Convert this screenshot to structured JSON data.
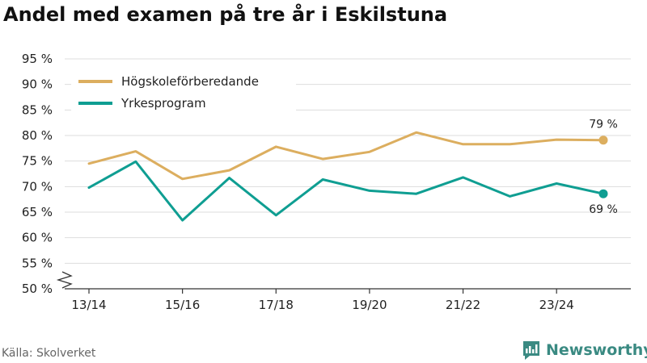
{
  "title": "Andel med examen på tre år i Eskilstuna",
  "source": "Källa: Skolverket",
  "brand": {
    "name": "Newsworthy",
    "icon": "newsworthy-logo-icon"
  },
  "colors": {
    "hogskole": "#dcae5f",
    "yrkes": "#0f9e92",
    "grid": "#dddddd",
    "brand": "#3a8a82"
  },
  "chart_data": {
    "type": "line",
    "title": "Andel med examen på tre år i Eskilstuna",
    "xlabel": "",
    "ylabel": "",
    "ylim": [
      50,
      95
    ],
    "y_ticks": [
      "95 %",
      "90 %",
      "85 %",
      "80 %",
      "75 %",
      "70 %",
      "65 %",
      "60 %",
      "55 %",
      "50 %"
    ],
    "y_tick_values": [
      95,
      90,
      85,
      80,
      75,
      70,
      65,
      60,
      55,
      50
    ],
    "y_axis_break": true,
    "grid": true,
    "legend_position": "top-left",
    "x": [
      "13/14",
      "14/15",
      "15/16",
      "16/17",
      "17/18",
      "18/19",
      "19/20",
      "20/21",
      "21/22",
      "22/23",
      "23/24",
      "24/25"
    ],
    "x_tick_labels": [
      "13/14",
      "15/16",
      "17/18",
      "19/20",
      "21/22",
      "23/24"
    ],
    "series": [
      {
        "name": "Högskoleförberedande",
        "color": "#dcae5f",
        "values": [
          74.5,
          76.9,
          71.5,
          73.2,
          77.8,
          75.4,
          76.8,
          80.6,
          78.3,
          78.3,
          79.2,
          79.1
        ],
        "end_label": "79 %"
      },
      {
        "name": "Yrkesprogram",
        "color": "#0f9e92",
        "values": [
          69.8,
          74.9,
          63.4,
          71.7,
          64.4,
          71.4,
          69.2,
          68.6,
          71.8,
          68.1,
          70.6,
          68.6
        ],
        "end_label": "69 %"
      }
    ]
  }
}
